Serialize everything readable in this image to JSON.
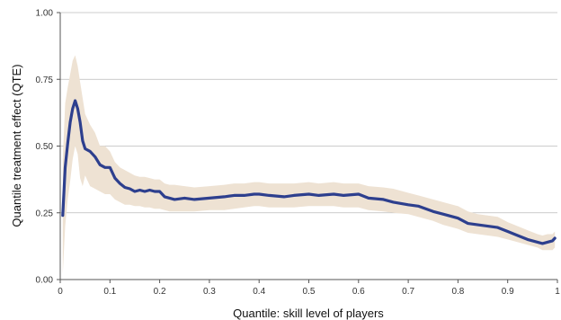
{
  "chart_data": {
    "type": "line",
    "title": "",
    "xlabel": "Quantile: skill level of players",
    "ylabel": "Quantile treatment effect (QTE)",
    "xlim": [
      0,
      1
    ],
    "ylim": [
      0,
      1
    ],
    "x_ticks": [
      0,
      0.1,
      0.2,
      0.3,
      0.4,
      0.5,
      0.6,
      0.7,
      0.8,
      0.9,
      1
    ],
    "x_tick_labels": [
      "0",
      "0.1",
      "0.2",
      "0.3",
      "0.4",
      "0.5",
      "0.6",
      "0.7",
      "0.8",
      "0.9",
      "1"
    ],
    "y_ticks": [
      0,
      0.25,
      0.5,
      0.75,
      1
    ],
    "y_tick_labels": [
      "0.00",
      "0.25",
      "0.50",
      "0.75",
      "1.00"
    ],
    "grid": "horizontal",
    "series": [
      {
        "x": [
          0.005,
          0.01,
          0.015,
          0.02,
          0.025,
          0.03,
          0.035,
          0.04,
          0.045,
          0.05,
          0.06,
          0.07,
          0.08,
          0.09,
          0.1,
          0.11,
          0.12,
          0.13,
          0.14,
          0.15,
          0.16,
          0.17,
          0.18,
          0.19,
          0.2,
          0.21,
          0.22,
          0.23,
          0.25,
          0.27,
          0.3,
          0.33,
          0.35,
          0.37,
          0.39,
          0.4,
          0.42,
          0.45,
          0.47,
          0.5,
          0.52,
          0.55,
          0.57,
          0.6,
          0.62,
          0.65,
          0.67,
          0.7,
          0.72,
          0.75,
          0.77,
          0.8,
          0.82,
          0.84,
          0.86,
          0.88,
          0.9,
          0.92,
          0.94,
          0.96,
          0.97,
          0.98,
          0.99,
          0.995
        ],
        "y": [
          0.24,
          0.42,
          0.51,
          0.59,
          0.64,
          0.67,
          0.64,
          0.59,
          0.52,
          0.49,
          0.48,
          0.46,
          0.43,
          0.42,
          0.42,
          0.38,
          0.36,
          0.345,
          0.34,
          0.33,
          0.335,
          0.33,
          0.335,
          0.33,
          0.33,
          0.31,
          0.305,
          0.3,
          0.305,
          0.3,
          0.305,
          0.31,
          0.315,
          0.315,
          0.32,
          0.32,
          0.315,
          0.31,
          0.315,
          0.32,
          0.315,
          0.32,
          0.315,
          0.32,
          0.305,
          0.3,
          0.29,
          0.28,
          0.275,
          0.255,
          0.245,
          0.23,
          0.21,
          0.205,
          0.2,
          0.195,
          0.18,
          0.165,
          0.15,
          0.14,
          0.135,
          0.14,
          0.145,
          0.155
        ],
        "lower": [
          0.02,
          0.2,
          0.3,
          0.37,
          0.45,
          0.5,
          0.47,
          0.38,
          0.35,
          0.39,
          0.35,
          0.34,
          0.33,
          0.32,
          0.32,
          0.3,
          0.29,
          0.28,
          0.28,
          0.275,
          0.275,
          0.27,
          0.27,
          0.265,
          0.265,
          0.26,
          0.255,
          0.255,
          0.255,
          0.255,
          0.26,
          0.26,
          0.265,
          0.27,
          0.275,
          0.275,
          0.27,
          0.27,
          0.27,
          0.275,
          0.275,
          0.275,
          0.27,
          0.27,
          0.26,
          0.255,
          0.25,
          0.245,
          0.235,
          0.22,
          0.205,
          0.19,
          0.175,
          0.17,
          0.165,
          0.16,
          0.15,
          0.14,
          0.13,
          0.12,
          0.11,
          0.11,
          0.11,
          0.12
        ],
        "upper": [
          0.45,
          0.66,
          0.72,
          0.77,
          0.82,
          0.84,
          0.8,
          0.74,
          0.68,
          0.62,
          0.58,
          0.55,
          0.5,
          0.5,
          0.48,
          0.44,
          0.42,
          0.41,
          0.4,
          0.39,
          0.385,
          0.385,
          0.38,
          0.375,
          0.375,
          0.36,
          0.355,
          0.355,
          0.35,
          0.345,
          0.35,
          0.355,
          0.36,
          0.36,
          0.365,
          0.365,
          0.36,
          0.36,
          0.36,
          0.365,
          0.36,
          0.365,
          0.36,
          0.36,
          0.35,
          0.345,
          0.34,
          0.325,
          0.315,
          0.3,
          0.29,
          0.275,
          0.255,
          0.245,
          0.24,
          0.235,
          0.215,
          0.2,
          0.185,
          0.17,
          0.165,
          0.17,
          0.17,
          0.18
        ]
      }
    ]
  },
  "style": {
    "line_color": "#2d3f8e",
    "band_color": "#eee2d3",
    "grid_color": "#bbbbbb",
    "axis_color": "#555555"
  }
}
